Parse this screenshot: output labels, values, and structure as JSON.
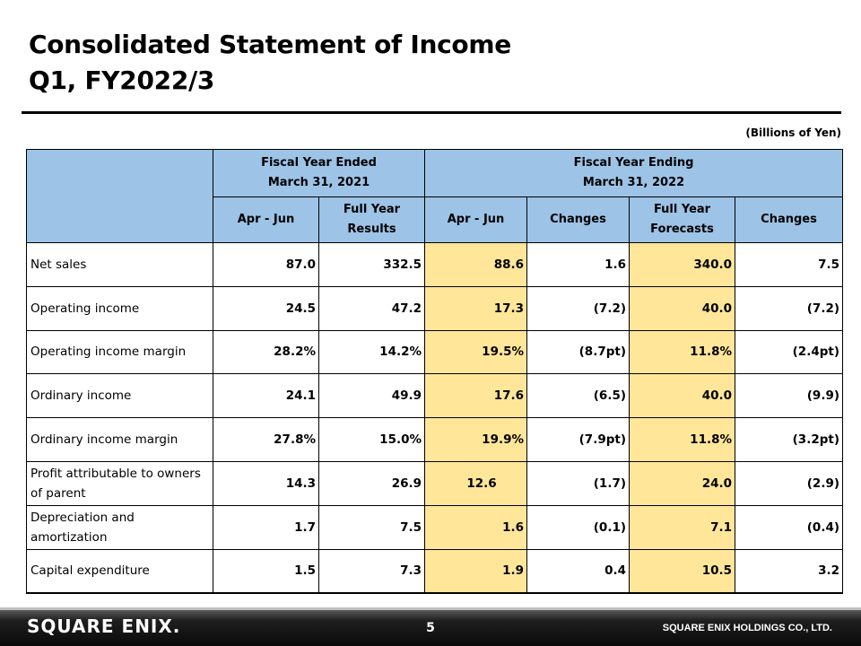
{
  "title": {
    "line1": "Consolidated Statement of Income",
    "line2": "Q1, FY2022/3"
  },
  "units": "(Billions of Yen)",
  "table": {
    "group_headers": {
      "fy2021_line1": "Fiscal Year Ended",
      "fy2021_line2": "March 31, 2021",
      "fy2022_line1": "Fiscal Year Ending",
      "fy2022_line2": "March 31, 2022"
    },
    "columns": {
      "c1": "Apr - Jun",
      "c2_line1": "Full Year",
      "c2_line2": "Results",
      "c3": "Apr - Jun",
      "c4": "Changes",
      "c5_line1": "Full Year",
      "c5_line2": "Forecasts",
      "c6": "Changes"
    },
    "highlight_color": "#ffe699",
    "header_color": "#9dc3e6",
    "rows": [
      {
        "label": "Net sales",
        "values": [
          "87.0",
          "332.5",
          "88.6",
          "1.6",
          "340.0",
          "7.5"
        ]
      },
      {
        "label": "Operating income",
        "values": [
          "24.5",
          "47.2",
          "17.3",
          "(7.2)",
          "40.0",
          "(7.2)"
        ]
      },
      {
        "label": "Operating income margin",
        "values": [
          "28.2%",
          "14.2%",
          "19.5%",
          "(8.7pt)",
          "11.8%",
          "(2.4pt)"
        ]
      },
      {
        "label": "Ordinary income",
        "values": [
          "24.1",
          "49.9",
          "17.6",
          "(6.5)",
          "40.0",
          "(9.9)"
        ]
      },
      {
        "label": "Ordinary income margin",
        "values": [
          "27.8%",
          "15.0%",
          "19.9%",
          "(7.9pt)",
          "11.8%",
          "(3.2pt)"
        ]
      },
      {
        "label": "Profit attributable to owners of parent",
        "values": [
          "14.3",
          "26.9",
          "12.6",
          "(1.7)",
          "24.0",
          "(2.9)"
        ]
      },
      {
        "label": "Depreciation and amortization",
        "values": [
          "1.7",
          "7.5",
          "1.6",
          "(0.1)",
          "7.1",
          "(0.4)"
        ]
      },
      {
        "label": "Capital expenditure",
        "values": [
          "1.5",
          "7.3",
          "1.9",
          "0.4",
          "10.5",
          "3.2"
        ]
      }
    ]
  },
  "footer": {
    "logo": "SQUARE ENIX.",
    "page_number": "5",
    "company": "SQUARE ENIX HOLDINGS CO., LTD."
  }
}
